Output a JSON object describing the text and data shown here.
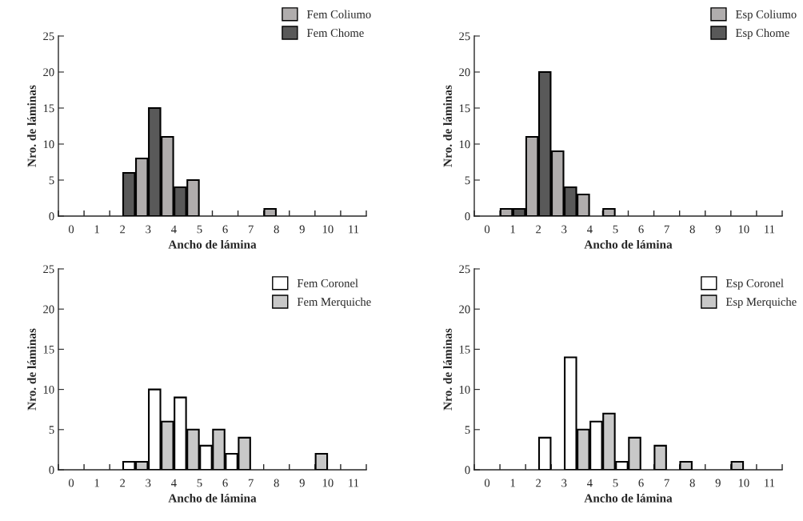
{
  "chart_data": [
    {
      "type": "bar",
      "xlabel": "Ancho de lámina",
      "ylabel": "Nro. de láminas",
      "xlim": [
        -0.5,
        11.5
      ],
      "ylim": [
        0,
        25
      ],
      "yticks": [
        0,
        5,
        10,
        15,
        20,
        25
      ],
      "xticks": [
        0,
        1,
        2,
        3,
        4,
        5,
        6,
        7,
        8,
        9,
        10,
        11,
        {
          "value": -0.5,
          "label": null
        },
        {
          "value": 0.5,
          "label": null
        },
        {
          "value": 1.5,
          "label": null
        },
        {
          "value": 2.5,
          "label": null
        },
        {
          "value": 3.5,
          "label": null
        },
        {
          "value": 4.5,
          "label": null
        },
        {
          "value": 5.5,
          "label": null
        },
        {
          "value": 6.5,
          "label": null
        },
        {
          "value": 7.5,
          "label": null
        },
        {
          "value": 8.5,
          "label": null
        },
        {
          "value": 9.5,
          "label": null
        },
        {
          "value": 10.5,
          "label": null
        },
        {
          "value": 11.5,
          "label": null
        }
      ],
      "legend": "top right",
      "grid": false,
      "series": [
        {
          "name": "Fem Coliumo",
          "color": "#b0adad",
          "x": [
            2.75,
            3.75,
            4.75,
            7.75
          ],
          "values": [
            8,
            11,
            5,
            1
          ]
        },
        {
          "name": "Fem Chome",
          "color": "#595959",
          "x": [
            2.25,
            3.25,
            4.25
          ],
          "values": [
            6,
            15,
            4
          ]
        }
      ]
    },
    {
      "type": "bar",
      "xlabel": "Ancho de lámina",
      "ylabel": "Nro. de láminas",
      "xlim": [
        -0.5,
        11.5
      ],
      "ylim": [
        0,
        25
      ],
      "yticks": [
        0,
        5,
        10,
        15,
        20,
        25
      ],
      "xticks": [
        0,
        1,
        2,
        3,
        4,
        5,
        6,
        7,
        8,
        9,
        10,
        11,
        {
          "value": -0.5,
          "label": null
        },
        {
          "value": 0.5,
          "label": null
        },
        {
          "value": 1.5,
          "label": null
        },
        {
          "value": 2.5,
          "label": null
        },
        {
          "value": 3.5,
          "label": null
        },
        {
          "value": 4.5,
          "label": null
        },
        {
          "value": 5.5,
          "label": null
        },
        {
          "value": 6.5,
          "label": null
        },
        {
          "value": 7.5,
          "label": null
        },
        {
          "value": 8.5,
          "label": null
        },
        {
          "value": 9.5,
          "label": null
        },
        {
          "value": 10.5,
          "label": null
        },
        {
          "value": 11.5,
          "label": null
        }
      ],
      "legend": "top right",
      "grid": false,
      "series": [
        {
          "name": "Esp Coliumo",
          "color": "#b0adad",
          "x": [
            0.75,
            1.75,
            2.75,
            3.75,
            4.75
          ],
          "values": [
            1,
            11,
            9,
            3,
            1
          ]
        },
        {
          "name": "Esp Chome",
          "color": "#595959",
          "x": [
            1.25,
            2.25,
            3.25
          ],
          "values": [
            1,
            20,
            4
          ]
        }
      ]
    },
    {
      "type": "bar",
      "xlabel": "Ancho de lámina",
      "ylabel": "Nro. de láminas",
      "xlim": [
        -0.5,
        11.5
      ],
      "ylim": [
        0,
        25
      ],
      "yticks": [
        0,
        5,
        10,
        15,
        20,
        25
      ],
      "xticks": [
        0,
        1,
        2,
        3,
        4,
        5,
        6,
        7,
        8,
        9,
        10,
        11,
        {
          "value": -0.5,
          "label": null
        },
        {
          "value": 0.5,
          "label": null
        },
        {
          "value": 1.5,
          "label": null
        },
        {
          "value": 2.5,
          "label": null
        },
        {
          "value": 3.5,
          "label": null
        },
        {
          "value": 4.5,
          "label": null
        },
        {
          "value": 5.5,
          "label": null
        },
        {
          "value": 6.5,
          "label": null
        },
        {
          "value": 7.5,
          "label": null
        },
        {
          "value": 8.5,
          "label": null
        },
        {
          "value": 9.5,
          "label": null
        },
        {
          "value": 10.5,
          "label": null
        },
        {
          "value": 11.5,
          "label": null
        }
      ],
      "legend": "top right",
      "grid": false,
      "series": [
        {
          "name": "Fem Coronel",
          "color": "#ffffff",
          "x": [
            2.25,
            3.25,
            4.25,
            5.25,
            6.25
          ],
          "values": [
            1,
            10,
            9,
            3,
            2
          ]
        },
        {
          "name": "Fem Merquiche",
          "color": "#c8c8c8",
          "x": [
            2.75,
            3.75,
            4.75,
            5.75,
            6.75,
            9.75
          ],
          "values": [
            1,
            6,
            5,
            5,
            4,
            2
          ]
        }
      ]
    },
    {
      "type": "bar",
      "xlabel": "Ancho de lámina",
      "ylabel": "Nro. de láminas",
      "xlim": [
        -0.5,
        11.5
      ],
      "ylim": [
        0,
        25
      ],
      "yticks": [
        0,
        5,
        10,
        15,
        20,
        25
      ],
      "xticks": [
        0,
        1,
        2,
        3,
        4,
        5,
        6,
        7,
        8,
        9,
        10,
        11,
        {
          "value": -0.5,
          "label": null
        },
        {
          "value": 0.5,
          "label": null
        },
        {
          "value": 1.5,
          "label": null
        },
        {
          "value": 2.5,
          "label": null
        },
        {
          "value": 3.5,
          "label": null
        },
        {
          "value": 4.5,
          "label": null
        },
        {
          "value": 5.5,
          "label": null
        },
        {
          "value": 6.5,
          "label": null
        },
        {
          "value": 7.5,
          "label": null
        },
        {
          "value": 8.5,
          "label": null
        },
        {
          "value": 9.5,
          "label": null
        },
        {
          "value": 10.5,
          "label": null
        },
        {
          "value": 11.5,
          "label": null
        }
      ],
      "legend": "top right",
      "grid": false,
      "series": [
        {
          "name": "Esp Coronel",
          "color": "#ffffff",
          "x": [
            2.25,
            3.25,
            4.25,
            5.25
          ],
          "values": [
            4,
            14,
            6,
            1
          ]
        },
        {
          "name": "Esp Merquiche",
          "color": "#c8c8c8",
          "x": [
            3.75,
            4.75,
            5.75,
            6.75,
            7.75,
            9.75
          ],
          "values": [
            5,
            7,
            4,
            3,
            1,
            1
          ]
        }
      ]
    }
  ]
}
